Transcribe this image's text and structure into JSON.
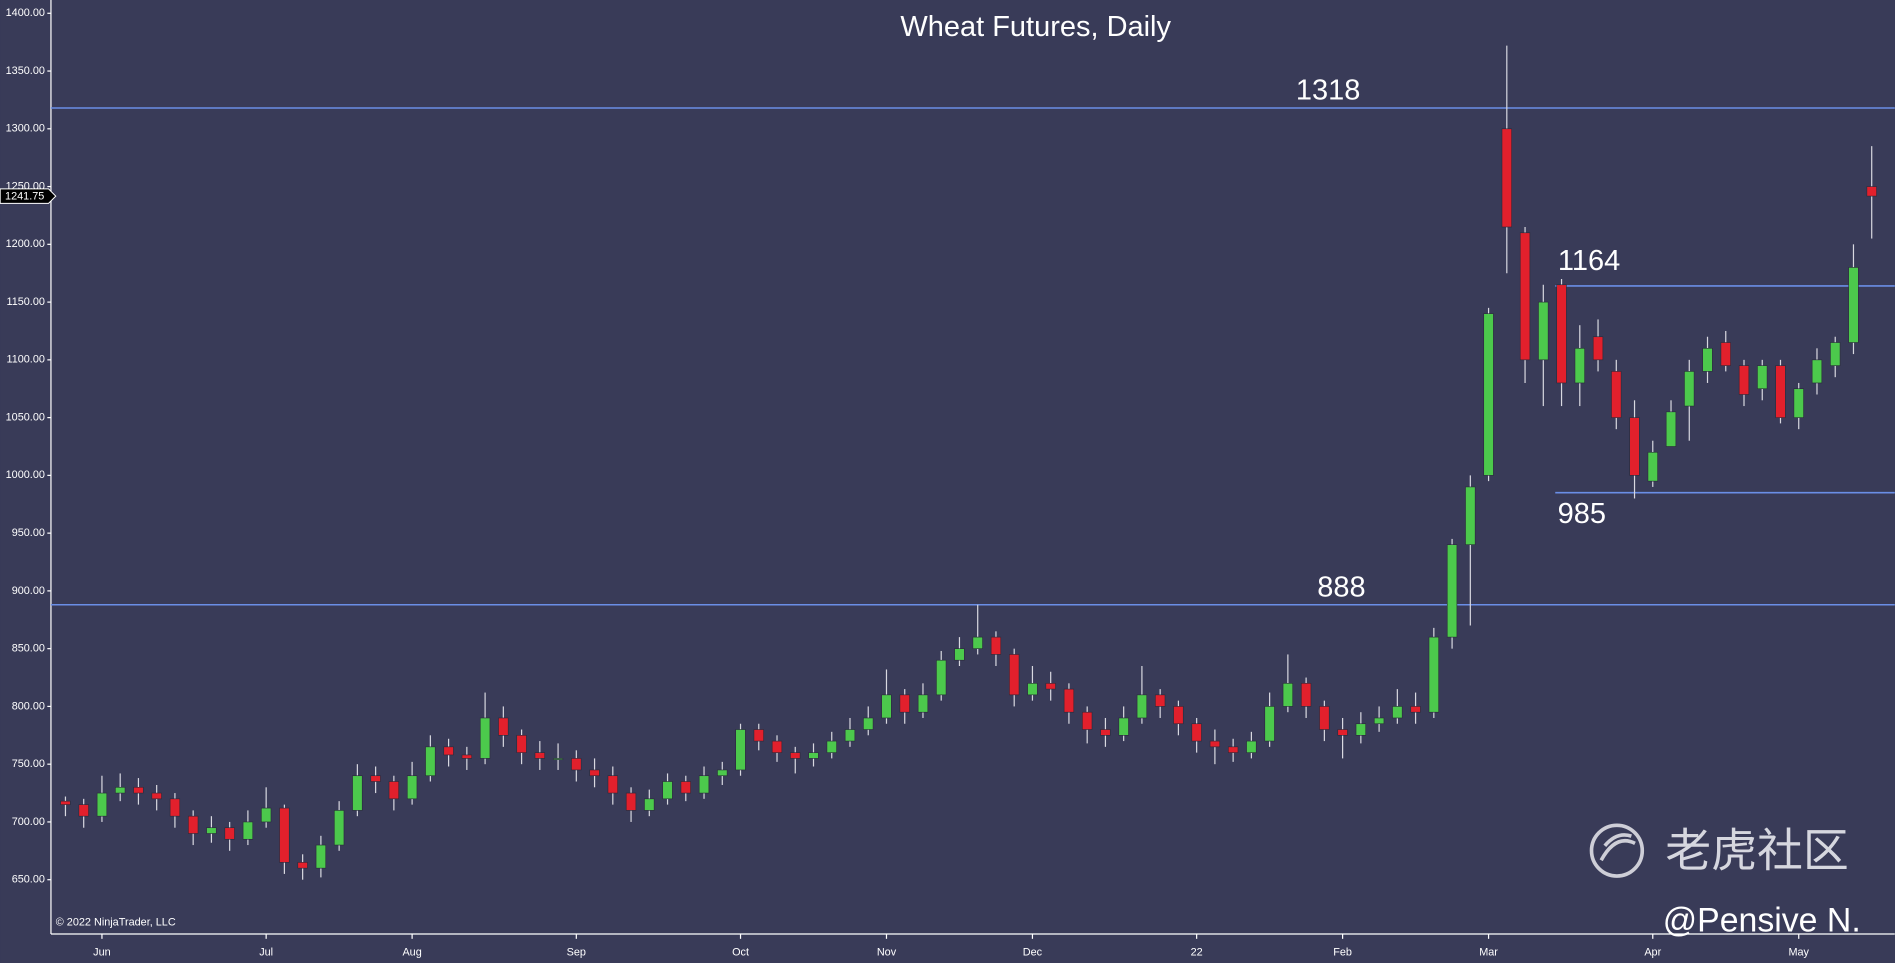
{
  "chart_data": {
    "type": "candlestick",
    "title": "Wheat Futures, Daily",
    "categories": [
      null,
      null,
      "Jun",
      null,
      null,
      null,
      null,
      null,
      null,
      null,
      null,
      "Jul",
      null,
      null,
      null,
      null,
      null,
      null,
      null,
      "Aug",
      null,
      null,
      null,
      null,
      null,
      null,
      null,
      null,
      "Sep",
      null,
      null,
      null,
      null,
      null,
      null,
      null,
      null,
      "Oct",
      null,
      null,
      null,
      null,
      null,
      null,
      null,
      "Nov",
      null,
      null,
      null,
      null,
      null,
      null,
      null,
      "Dec",
      null,
      null,
      null,
      null,
      null,
      null,
      null,
      null,
      "22",
      null,
      null,
      null,
      null,
      null,
      null,
      null,
      "Feb",
      null,
      null,
      null,
      null,
      null,
      null,
      null,
      "Mar",
      null,
      null,
      null,
      null,
      null,
      null,
      null,
      null,
      "Apr",
      null,
      null,
      null,
      null,
      null,
      null,
      null,
      "May",
      null,
      null,
      null,
      null
    ],
    "open": [
      718,
      715,
      705,
      725,
      730,
      725,
      720,
      705,
      690,
      695,
      685,
      700,
      712,
      665,
      660,
      680,
      710,
      740,
      735,
      720,
      740,
      765,
      758,
      755,
      790,
      775,
      760,
      755,
      755,
      745,
      740,
      725,
      710,
      720,
      735,
      725,
      740,
      745,
      780,
      770,
      760,
      755,
      760,
      770,
      780,
      790,
      810,
      795,
      810,
      840,
      850,
      860,
      845,
      810,
      820,
      815,
      795,
      780,
      775,
      790,
      810,
      800,
      785,
      770,
      765,
      760,
      770,
      800,
      820,
      800,
      780,
      775,
      785,
      790,
      800,
      795,
      860,
      940,
      1000,
      1300,
      1210,
      1100,
      1165,
      1080,
      1120,
      1090,
      1050,
      995,
      1025,
      1060,
      1090,
      1115,
      1095,
      1075,
      1095,
      1050,
      1080,
      1095,
      1115,
      1250
    ],
    "high": [
      722,
      720,
      740,
      742,
      738,
      732,
      725,
      710,
      705,
      700,
      710,
      730,
      715,
      672,
      688,
      718,
      750,
      748,
      740,
      752,
      775,
      772,
      765,
      812,
      800,
      780,
      770,
      768,
      762,
      755,
      748,
      730,
      728,
      742,
      740,
      748,
      752,
      785,
      785,
      775,
      765,
      768,
      778,
      790,
      800,
      832,
      815,
      820,
      848,
      860,
      888,
      865,
      850,
      835,
      830,
      820,
      800,
      790,
      800,
      835,
      815,
      805,
      790,
      780,
      772,
      778,
      812,
      845,
      825,
      805,
      790,
      795,
      800,
      815,
      812,
      868,
      945,
      1000,
      1145,
      1372,
      1215,
      1165,
      1170,
      1130,
      1135,
      1100,
      1065,
      1030,
      1065,
      1100,
      1120,
      1125,
      1100,
      1100,
      1100,
      1080,
      1110,
      1120,
      1200,
      1285
    ],
    "low": [
      705,
      695,
      700,
      718,
      715,
      710,
      695,
      680,
      682,
      675,
      680,
      695,
      655,
      650,
      652,
      675,
      705,
      725,
      710,
      715,
      735,
      748,
      745,
      750,
      765,
      750,
      745,
      745,
      735,
      730,
      715,
      700,
      705,
      715,
      718,
      720,
      732,
      740,
      762,
      752,
      742,
      748,
      755,
      765,
      775,
      785,
      785,
      790,
      805,
      835,
      845,
      835,
      800,
      805,
      805,
      785,
      768,
      765,
      770,
      785,
      790,
      775,
      760,
      750,
      752,
      755,
      765,
      795,
      790,
      770,
      755,
      768,
      778,
      785,
      785,
      790,
      850,
      870,
      995,
      1175,
      1080,
      1060,
      1060,
      1060,
      1090,
      1040,
      980,
      990,
      1025,
      1030,
      1080,
      1090,
      1060,
      1065,
      1045,
      1040,
      1070,
      1085,
      1105,
      1205
    ],
    "close": [
      715,
      705,
      725,
      730,
      725,
      720,
      705,
      690,
      695,
      685,
      700,
      712,
      665,
      660,
      680,
      710,
      740,
      735,
      720,
      740,
      765,
      758,
      755,
      790,
      775,
      760,
      755,
      755,
      745,
      740,
      725,
      710,
      720,
      735,
      725,
      740,
      745,
      780,
      770,
      760,
      755,
      760,
      770,
      780,
      790,
      810,
      795,
      810,
      840,
      850,
      860,
      845,
      810,
      820,
      815,
      795,
      780,
      775,
      790,
      810,
      800,
      785,
      770,
      765,
      760,
      770,
      800,
      820,
      800,
      780,
      775,
      785,
      790,
      800,
      795,
      860,
      940,
      990,
      1140,
      1215,
      1100,
      1150,
      1080,
      1110,
      1100,
      1050,
      1000,
      1020,
      1055,
      1090,
      1110,
      1095,
      1070,
      1095,
      1050,
      1075,
      1100,
      1115,
      1180,
      1241.75
    ],
    "up_color": "#4cc94c",
    "down_color": "#e2202c",
    "wick_color": "#d8d8e0",
    "ylim": [
      603,
      1411.5
    ],
    "yticks": [
      {
        "value": 650,
        "label": "650.00"
      },
      {
        "value": 700,
        "label": "700.00"
      },
      {
        "value": 750,
        "label": "750.00"
      },
      {
        "value": 800,
        "label": "800.00"
      },
      {
        "value": 850,
        "label": "850.00"
      },
      {
        "value": 900,
        "label": "900.00"
      },
      {
        "value": 950,
        "label": "950.00"
      },
      {
        "value": 1000,
        "label": "1000.00"
      },
      {
        "value": 1050,
        "label": "1050.00"
      },
      {
        "value": 1100,
        "label": "1100.00"
      },
      {
        "value": 1150,
        "label": "1150.00"
      },
      {
        "value": 1200,
        "label": "1200.00"
      },
      {
        "value": 1250,
        "label": "1250.00"
      },
      {
        "value": 1300,
        "label": "1300.00"
      },
      {
        "value": 1350,
        "label": "1350.00"
      },
      {
        "value": 1400,
        "label": "1400.00"
      }
    ],
    "levels": [
      1318,
      888,
      1164,
      985
    ],
    "level_color": "#6a8ee6",
    "last_price": 1241.75,
    "copyright": "© 2022 NinjaTrader, LLC",
    "watermark": "老虎社区",
    "author": "@Pensive N."
  }
}
